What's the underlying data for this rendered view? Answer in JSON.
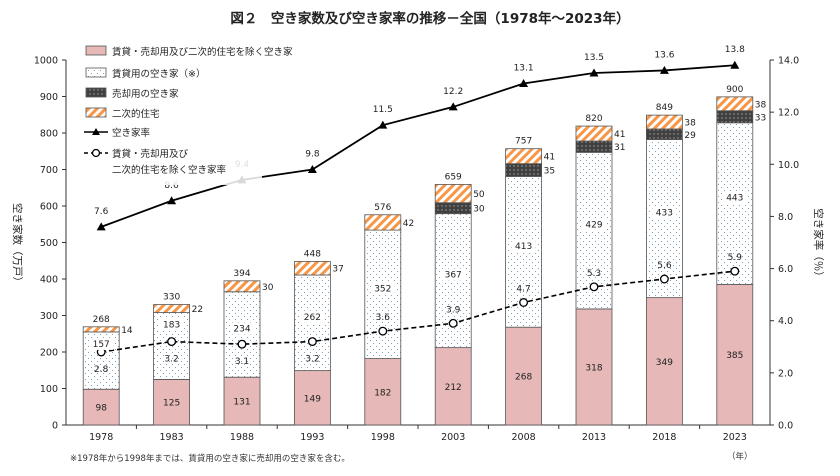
{
  "chart_data": {
    "type": "bar",
    "title": "図２　空き家数及び空き家率の推移－全国（1978年～2023年）",
    "categories": [
      "1978",
      "1983",
      "1988",
      "1993",
      "1998",
      "2003",
      "2008",
      "2013",
      "2018",
      "2023"
    ],
    "x_unit": "（年）",
    "ylabel_left": "空き家数（万戸）",
    "ylabel_right": "空き家率（％）",
    "ylim_left": [
      0,
      1000
    ],
    "ylim_right": [
      0,
      14
    ],
    "yticks_left": [
      "0",
      "100",
      "200",
      "300",
      "400",
      "500",
      "600",
      "700",
      "800",
      "900",
      "1000"
    ],
    "yticks_right": [
      "0.0",
      "2.0",
      "4.0",
      "6.0",
      "8.0",
      "10.0",
      "12.0",
      "14.0"
    ],
    "grid": false,
    "legend_position": "top-left",
    "bar_series": [
      {
        "name": "賃貸・売却用及び二次的住宅を除く空き家",
        "color": "#e6b8b7",
        "values": [
          98,
          125,
          131,
          149,
          182,
          212,
          268,
          318,
          349,
          385
        ],
        "labels": [
          "98",
          "125",
          "131",
          "149",
          "182",
          "212",
          "268",
          "318",
          "349",
          "385"
        ]
      },
      {
        "name": "賃貸用の空き家（※）",
        "color": "#ffffff",
        "values": [
          157,
          183,
          234,
          262,
          352,
          367,
          413,
          429,
          433,
          443
        ],
        "labels": [
          "157",
          "183",
          "234",
          "262",
          "352",
          "367",
          "413",
          "429",
          "433",
          "443"
        ]
      },
      {
        "name": "売却用の空き家",
        "color": "#404040",
        "values": [
          0,
          0,
          0,
          0,
          0,
          30,
          35,
          31,
          29,
          33
        ],
        "labels": [
          "",
          "",
          "",
          "",
          "",
          "30",
          "35",
          "31",
          "29",
          "33"
        ]
      },
      {
        "name": "二次的住宅",
        "color": "#f79646",
        "values": [
          14,
          22,
          30,
          37,
          42,
          50,
          41,
          41,
          38,
          38
        ],
        "labels": [
          "14",
          "22",
          "30",
          "37",
          "42",
          "50",
          "41",
          "41",
          "38",
          "38"
        ]
      }
    ],
    "totals": [
      "268",
      "330",
      "394",
      "448",
      "576",
      "659",
      "757",
      "820",
      "849",
      "900"
    ],
    "line_series": [
      {
        "name": "空き家率",
        "style": "solid-triangle",
        "values": [
          7.6,
          8.6,
          9.4,
          9.8,
          11.5,
          12.2,
          13.1,
          13.5,
          13.6,
          13.8
        ],
        "labels": [
          "7.6",
          "8.6",
          "9.4",
          "9.8",
          "11.5",
          "12.2",
          "13.1",
          "13.5",
          "13.6",
          "13.8"
        ]
      },
      {
        "name_line1": "賃貸・売却用及び",
        "name_line2": "二次的住宅を除く空き家率",
        "style": "dashed-circle",
        "values": [
          2.8,
          3.2,
          3.1,
          3.2,
          3.6,
          3.9,
          4.7,
          5.3,
          5.6,
          5.9
        ],
        "labels": [
          "2.8",
          "3.2",
          "3.1",
          "3.2",
          "3.6",
          "3.9",
          "4.7",
          "5.3",
          "5.6",
          "5.9"
        ]
      }
    ],
    "footnote": "※1978年から1998年までは、賃貸用の空き家に売却用の空き家を含む。"
  }
}
